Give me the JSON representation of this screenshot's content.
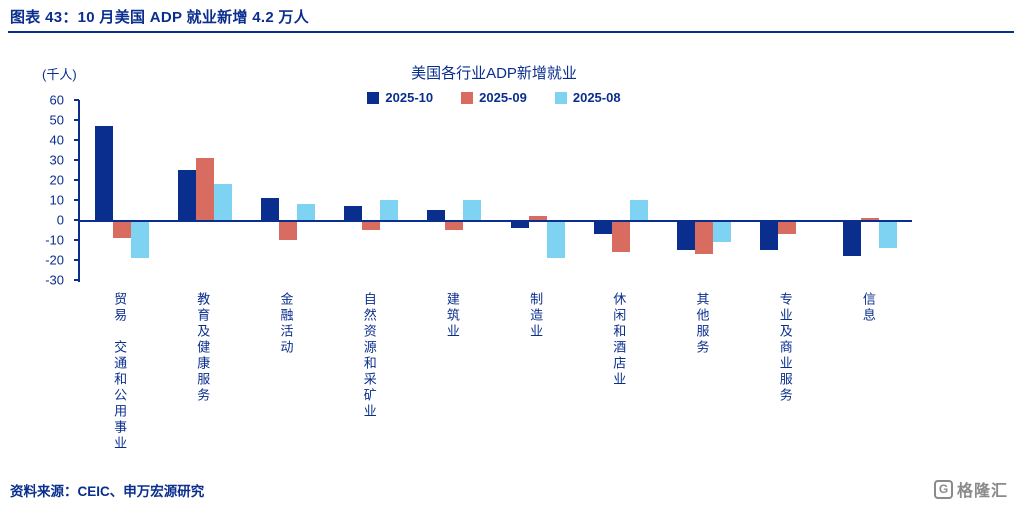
{
  "page": {
    "header_title": "图表 43：10 月美国 ADP 就业新增 4.2 万人",
    "footer_source": "资料来源：CEIC、申万宏源研究",
    "logo_letter": "G",
    "logo_text": "格隆汇"
  },
  "colors": {
    "accent_navy": "#0A2E8E",
    "logo_gray": "#8a8a8a"
  },
  "chart_data": {
    "type": "bar",
    "title": "美国各行业ADP新增就业",
    "ylabel": "(千人)",
    "xlabel": "",
    "grid": false,
    "legend_position": "top",
    "ylim": [
      -30,
      60
    ],
    "yticks": [
      60,
      50,
      40,
      30,
      20,
      10,
      0,
      -10,
      -20,
      -30
    ],
    "categories": [
      "贸易　交通和公用事业",
      "教育及健康服务",
      "金融活动",
      "自然资源和采矿业",
      "建筑业",
      "制造业",
      "休闲和酒店业",
      "其他服务",
      "专业及商业服务",
      "信息"
    ],
    "series": [
      {
        "name": "2025-10",
        "color": "#0A2E8E",
        "values": [
          47,
          25,
          11,
          7,
          5,
          -3,
          -6,
          -14,
          -14,
          -17
        ]
      },
      {
        "name": "2025-09",
        "color": "#D96C60",
        "values": [
          -8,
          31,
          -9,
          -4,
          -4,
          2,
          -15,
          -16,
          -6,
          1
        ]
      },
      {
        "name": "2025-08",
        "color": "#7ED3F2",
        "values": [
          -18,
          18,
          8,
          10,
          10,
          -18,
          10,
          -10,
          0,
          -13
        ]
      }
    ]
  }
}
